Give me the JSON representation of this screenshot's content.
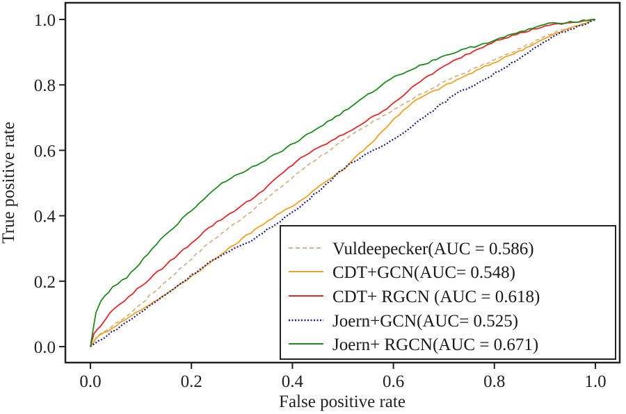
{
  "chart_data": {
    "type": "line",
    "title": "",
    "xlabel": "False positive rate",
    "ylabel": "True positive rate",
    "xlim": [
      0.0,
      1.0
    ],
    "ylim": [
      0.0,
      1.0
    ],
    "x_ticks": [
      "0.0",
      "0.2",
      "0.4",
      "0.6",
      "0.8",
      "1.0"
    ],
    "y_ticks": [
      "0.0",
      "0.2",
      "0.4",
      "0.6",
      "0.8",
      "1.0"
    ],
    "grid": false,
    "legend_position": "bottom-right",
    "series": [
      {
        "name": "Vuldeepecker(AUC = 0.586)",
        "color": "#d2b48c",
        "style": "dashed",
        "x": [
          0.0,
          0.016,
          0.076,
          0.15,
          0.234,
          0.326,
          0.431,
          0.51,
          0.579,
          0.602,
          0.702,
          0.83,
          0.923,
          1.0
        ],
        "y": [
          0.0,
          0.034,
          0.098,
          0.2,
          0.316,
          0.423,
          0.556,
          0.639,
          0.705,
          0.726,
          0.811,
          0.896,
          0.964,
          1.0
        ]
      },
      {
        "name": "CDT+GCN(AUC= 0.548)",
        "color": "#f5a020",
        "style": "solid",
        "x": [
          0.0,
          0.011,
          0.076,
          0.15,
          0.234,
          0.326,
          0.42,
          0.455,
          0.5,
          0.533,
          0.555,
          0.602,
          0.647,
          0.74,
          0.83,
          0.923,
          1.0
        ],
        "y": [
          0.0,
          0.026,
          0.09,
          0.16,
          0.253,
          0.359,
          0.45,
          0.493,
          0.54,
          0.592,
          0.62,
          0.698,
          0.756,
          0.826,
          0.89,
          0.958,
          1.0
        ]
      },
      {
        "name": "CDT+ RGCN (AUC = 0.618)",
        "color": "#e8262a",
        "style": "solid",
        "x": [
          0.0,
          0.007,
          0.02,
          0.039,
          0.076,
          0.15,
          0.234,
          0.326,
          0.417,
          0.51,
          0.579,
          0.602,
          0.661,
          0.726,
          0.803,
          0.9,
          1.0
        ],
        "y": [
          0.0,
          0.04,
          0.062,
          0.104,
          0.153,
          0.25,
          0.363,
          0.458,
          0.578,
          0.656,
          0.72,
          0.747,
          0.82,
          0.879,
          0.936,
          0.98,
          1.0
        ]
      },
      {
        "name": "Joern+GCN(AUC= 0.525)",
        "color": "#1a1a80",
        "style": "dotted",
        "x": [
          0.0,
          0.076,
          0.15,
          0.234,
          0.326,
          0.417,
          0.51,
          0.579,
          0.602,
          0.67,
          0.72,
          0.785,
          0.858,
          0.923,
          1.0
        ],
        "y": [
          0.0,
          0.079,
          0.16,
          0.257,
          0.331,
          0.429,
          0.556,
          0.614,
          0.635,
          0.713,
          0.769,
          0.82,
          0.89,
          0.953,
          1.0
        ]
      },
      {
        "name": "Joern+ RGCN(AUC = 0.671)",
        "color": "#1f8a1f",
        "style": "solid",
        "x": [
          0.0,
          0.011,
          0.021,
          0.044,
          0.072,
          0.147,
          0.234,
          0.26,
          0.372,
          0.51,
          0.523,
          0.602,
          0.702,
          0.803,
          0.9,
          1.0
        ],
        "y": [
          0.0,
          0.104,
          0.14,
          0.183,
          0.21,
          0.34,
          0.465,
          0.5,
          0.592,
          0.726,
          0.741,
          0.826,
          0.89,
          0.938,
          0.985,
          1.0
        ]
      }
    ]
  }
}
